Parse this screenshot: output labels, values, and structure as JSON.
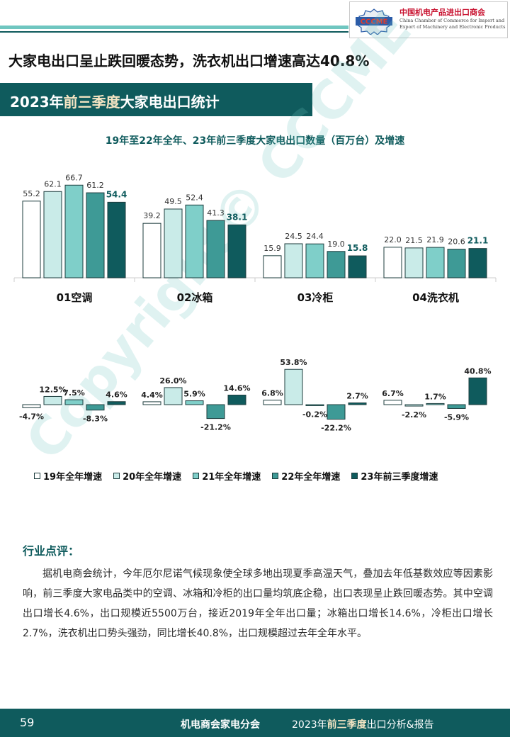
{
  "header": {
    "logo_abbr": "CCCME",
    "logo_cn": "中国机电产品进出口商会",
    "logo_en": "China Chamber of Commerce for Import and Export of Machinery and Electronic Products"
  },
  "headline": "大家电出口呈止跌回暖态势，洗衣机出口增速高达40.8%",
  "section": {
    "title_a": "2023年",
    "title_b": "前三季度",
    "title_c": "大家电出口统计"
  },
  "chart_title": "19年至22年全年、23年前三季度大家电出口数量（百万台）及增速",
  "colors": {
    "s1": "#ffffff",
    "s2": "#c9ebe8",
    "s3": "#7fcfc9",
    "s4": "#3e9a96",
    "s5": "#0f5b5d",
    "dark": "#0f5b5d",
    "highlight": "#f6e6c4"
  },
  "chart_data": [
    {
      "type": "bar",
      "categories": [
        "01空调",
        "02冰箱",
        "03冷柜",
        "04洗衣机"
      ],
      "series": [
        {
          "name": "19年全年增速",
          "values": [
            55.2,
            39.2,
            15.9,
            22.0
          ]
        },
        {
          "name": "20年全年增速",
          "values": [
            62.1,
            49.5,
            24.5,
            21.5
          ]
        },
        {
          "name": "21年全年增速",
          "values": [
            66.7,
            52.4,
            24.4,
            21.9
          ]
        },
        {
          "name": "22年全年增速",
          "values": [
            61.2,
            41.3,
            19.0,
            20.6
          ]
        },
        {
          "name": "23年前三季度增速",
          "values": [
            54.4,
            38.1,
            15.8,
            21.1
          ]
        }
      ],
      "ylim": [
        0,
        75
      ],
      "ylabel": "",
      "xlabel": ""
    },
    {
      "type": "bar",
      "categories": [
        "01空调",
        "02冰箱",
        "03冷柜",
        "04洗衣机"
      ],
      "series": [
        {
          "name": "19年全年增速",
          "values": [
            -4.7,
            4.4,
            6.8,
            6.7
          ]
        },
        {
          "name": "20年全年增速",
          "values": [
            12.5,
            26.0,
            53.8,
            -2.2
          ]
        },
        {
          "name": "21年全年增速",
          "values": [
            7.5,
            5.9,
            -0.2,
            1.7
          ]
        },
        {
          "name": "22年全年增速",
          "values": [
            -8.3,
            -21.2,
            -22.2,
            -5.9
          ]
        },
        {
          "name": "23年前三季度增速",
          "values": [
            4.6,
            14.6,
            2.7,
            40.8
          ]
        }
      ],
      "unit": "%",
      "ylim": [
        -30,
        60
      ]
    }
  ],
  "legend": [
    "19年全年增速",
    "20年全年增速",
    "21年全年增速",
    "22年全年增速",
    "23年前三季度增速"
  ],
  "watermark": "Copyright© CCCME",
  "comment": {
    "title": "行业点评：",
    "body": "据机电商会统计，今年厄尔尼诺气候现象使全球多地出现夏季高温天气，叠加去年低基数效应等因素影响，前三季度大家电品类中的空调、冰箱和冷柜的出口量均筑底企稳，出口表现呈止跌回暖态势。其中空调出口增长4.6%，出口规模近5500万台，接近2019年全年出口量；冰箱出口增长14.6%，冷柜出口增长2.7%，洗衣机出口势头强劲，同比增长40.8%，出口规模超过去年全年水平。"
  },
  "footer": {
    "page": "59",
    "org": "机电商会家电分会",
    "report_a": "2023年",
    "report_b": "前三季度",
    "report_c": "出口分析&报告"
  }
}
